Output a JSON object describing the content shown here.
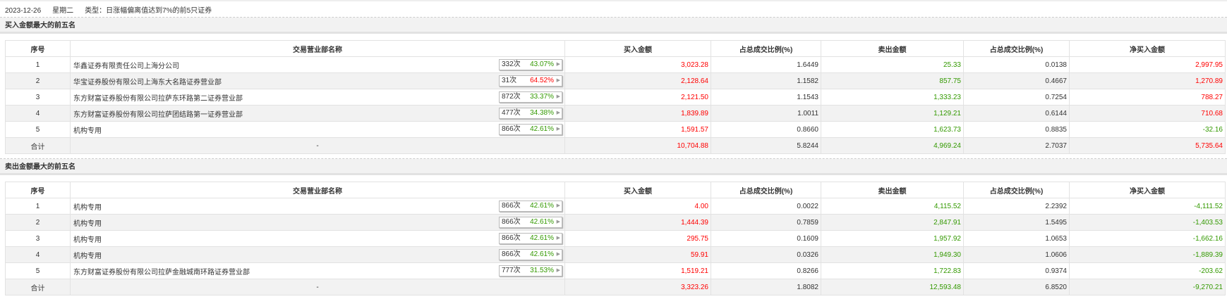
{
  "header": {
    "date": "2023-12-26",
    "weekday": "星期二",
    "type": "类型：日涨幅偏离值达到7%的前5只证券"
  },
  "colors": {
    "up": "#ff0000",
    "down": "#339900"
  },
  "columns": [
    "序号",
    "交易营业部名称",
    "买入金额",
    "占总成交比例(%)",
    "卖出金额",
    "占总成交比例(%)",
    "净买入金额"
  ],
  "buy_section": {
    "title": "买入金额最大的前五名",
    "rows": [
      {
        "no": "1",
        "name": "华鑫证券有限责任公司上海分公司",
        "count": "332次",
        "rate": "43.07%",
        "rate_color": "green",
        "buy": "3,023.28",
        "buy_pct": "1.6449",
        "sell": "25.33",
        "sell_pct": "0.0138",
        "net": "2,997.95",
        "net_color": "red"
      },
      {
        "no": "2",
        "name": "华宝证券股份有限公司上海东大名路证券营业部",
        "count": "31次",
        "rate": "64.52%",
        "rate_color": "red",
        "buy": "2,128.64",
        "buy_pct": "1.1582",
        "sell": "857.75",
        "sell_pct": "0.4667",
        "net": "1,270.89",
        "net_color": "red"
      },
      {
        "no": "3",
        "name": "东方财富证券股份有限公司拉萨东环路第二证券营业部",
        "count": "872次",
        "rate": "33.37%",
        "rate_color": "green",
        "buy": "2,121.50",
        "buy_pct": "1.1543",
        "sell": "1,333.23",
        "sell_pct": "0.7254",
        "net": "788.27",
        "net_color": "red"
      },
      {
        "no": "4",
        "name": "东方财富证券股份有限公司拉萨团结路第一证券营业部",
        "count": "477次",
        "rate": "34.38%",
        "rate_color": "green",
        "buy": "1,839.89",
        "buy_pct": "1.0011",
        "sell": "1,129.21",
        "sell_pct": "0.6144",
        "net": "710.68",
        "net_color": "red"
      },
      {
        "no": "5",
        "name": "机构专用",
        "count": "866次",
        "rate": "42.61%",
        "rate_color": "green",
        "buy": "1,591.57",
        "buy_pct": "0.8660",
        "sell": "1,623.73",
        "sell_pct": "0.8835",
        "net": "-32.16",
        "net_color": "green"
      }
    ],
    "total": {
      "label": "合计",
      "name": "-",
      "buy": "10,704.88",
      "buy_pct": "5.8244",
      "sell": "4,969.24",
      "sell_pct": "2.7037",
      "net": "5,735.64",
      "net_color": "red"
    }
  },
  "sell_section": {
    "title": "卖出金额最大的前五名",
    "rows": [
      {
        "no": "1",
        "name": "机构专用",
        "count": "866次",
        "rate": "42.61%",
        "rate_color": "green",
        "buy": "4.00",
        "buy_pct": "0.0022",
        "sell": "4,115.52",
        "sell_pct": "2.2392",
        "net": "-4,111.52",
        "net_color": "green"
      },
      {
        "no": "2",
        "name": "机构专用",
        "count": "866次",
        "rate": "42.61%",
        "rate_color": "green",
        "buy": "1,444.39",
        "buy_pct": "0.7859",
        "sell": "2,847.91",
        "sell_pct": "1.5495",
        "net": "-1,403.53",
        "net_color": "green"
      },
      {
        "no": "3",
        "name": "机构专用",
        "count": "866次",
        "rate": "42.61%",
        "rate_color": "green",
        "buy": "295.75",
        "buy_pct": "0.1609",
        "sell": "1,957.92",
        "sell_pct": "1.0653",
        "net": "-1,662.16",
        "net_color": "green"
      },
      {
        "no": "4",
        "name": "机构专用",
        "count": "866次",
        "rate": "42.61%",
        "rate_color": "green",
        "buy": "59.91",
        "buy_pct": "0.0326",
        "sell": "1,949.30",
        "sell_pct": "1.0606",
        "net": "-1,889.39",
        "net_color": "green"
      },
      {
        "no": "5",
        "name": "东方财富证券股份有限公司拉萨金融城南环路证券营业部",
        "count": "777次",
        "rate": "31.53%",
        "rate_color": "green",
        "buy": "1,519.21",
        "buy_pct": "0.8266",
        "sell": "1,722.83",
        "sell_pct": "0.9374",
        "net": "-203.62",
        "net_color": "green"
      }
    ],
    "total": {
      "label": "合计",
      "name": "-",
      "buy": "3,323.26",
      "buy_pct": "1.8082",
      "sell": "12,593.48",
      "sell_pct": "6.8520",
      "net": "-9,270.21",
      "net_color": "green"
    }
  }
}
